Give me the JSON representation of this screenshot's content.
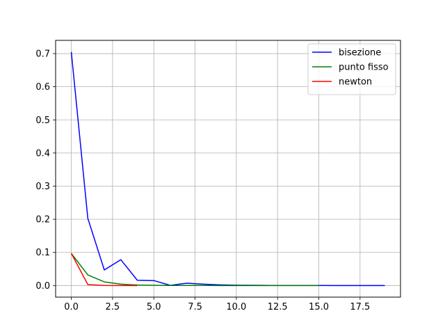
{
  "chart_data": {
    "type": "line",
    "title": "",
    "xlabel": "",
    "ylabel": "",
    "xlim": [
      -0.95,
      19.95
    ],
    "ylim": [
      -0.035,
      0.74
    ],
    "grid": true,
    "legend_position": "upper right",
    "x_ticks": [
      {
        "value": 0,
        "label": "0.0"
      },
      {
        "value": 2.5,
        "label": "2.5"
      },
      {
        "value": 5,
        "label": "5.0"
      },
      {
        "value": 7.5,
        "label": "7.5"
      },
      {
        "value": 10,
        "label": "10.0"
      },
      {
        "value": 12.5,
        "label": "12.5"
      },
      {
        "value": 15,
        "label": "15.0"
      },
      {
        "value": 17.5,
        "label": "17.5"
      }
    ],
    "y_ticks": [
      {
        "value": 0.0,
        "label": "0.0"
      },
      {
        "value": 0.1,
        "label": "0.1"
      },
      {
        "value": 0.2,
        "label": "0.2"
      },
      {
        "value": 0.3,
        "label": "0.3"
      },
      {
        "value": 0.4,
        "label": "0.4"
      },
      {
        "value": 0.5,
        "label": "0.5"
      },
      {
        "value": 0.6,
        "label": "0.6"
      },
      {
        "value": 0.7,
        "label": "0.7"
      }
    ],
    "series": [
      {
        "name": "bisezione",
        "color": "#0000ff",
        "x": [
          0,
          1,
          2,
          3,
          4,
          5,
          6,
          7,
          8,
          9,
          10,
          11,
          12,
          13,
          14,
          15,
          16,
          17,
          18,
          19
        ],
        "y": [
          0.705,
          0.203,
          0.047,
          0.078,
          0.016,
          0.015,
          0.0005,
          0.007,
          0.004,
          0.002,
          0.001,
          0.0006,
          0.0003,
          0.0002,
          0.0001,
          0.0001,
          0.0,
          0.0,
          0.0,
          0.0
        ]
      },
      {
        "name": "punto fisso",
        "color": "#008000",
        "x": [
          0,
          1,
          2,
          3,
          4,
          5,
          6,
          7,
          8,
          9,
          10,
          11,
          12,
          13,
          14,
          15
        ],
        "y": [
          0.097,
          0.032,
          0.011,
          0.004,
          0.0015,
          0.0007,
          0.0003,
          0.0001,
          0.0001,
          0.0,
          0.0,
          0.0,
          0.0,
          0.0,
          0.0,
          0.0
        ]
      },
      {
        "name": "newton",
        "color": "#ff0000",
        "x": [
          0,
          1,
          2,
          3,
          4
        ],
        "y": [
          0.097,
          0.003,
          0.0003,
          0.0,
          0.0
        ]
      }
    ]
  }
}
